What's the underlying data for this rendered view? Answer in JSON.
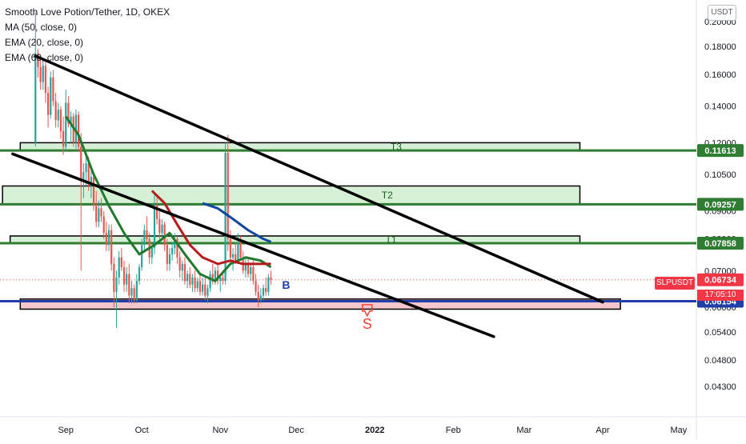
{
  "header": {
    "title": "Smooth Love Potion/Tether, 1D, OKEX",
    "indicators": [
      "MA (50, close, 0)",
      "EMA (20, close, 0)",
      "EMA (60, close, 0)"
    ]
  },
  "unit": "USDT",
  "symbol": "SLPUSDT",
  "countdown": "17:05:10",
  "colors": {
    "bull": "#26a69a",
    "bear": "#ef5350",
    "ma50": "#1f7a2e",
    "ema20": "#b71c1c",
    "ema60": "#0d47a1",
    "support": "#1f3ea8",
    "zone_fill": "#d6f0d6",
    "level_green": "#2e7d32",
    "trend": "#000000",
    "price_tag": "#f23645",
    "pink_fill": "#f5c6cb"
  },
  "chart_data": {
    "type": "candlestick",
    "title": "Smooth Love Potion/Tether, 1D, OKEX",
    "x_axis": {
      "type": "date",
      "range": [
        "2021-08-06",
        "2022-05-08"
      ],
      "ticks": [
        {
          "label": "Sep",
          "date": "2021-09-01"
        },
        {
          "label": "Oct",
          "date": "2021-10-01"
        },
        {
          "label": "Nov",
          "date": "2021-11-01"
        },
        {
          "label": "Dec",
          "date": "2021-12-01"
        },
        {
          "label": "2022",
          "date": "2022-01-01"
        },
        {
          "label": "Feb",
          "date": "2022-02-01"
        },
        {
          "label": "Mar",
          "date": "2022-03-01"
        },
        {
          "label": "Apr",
          "date": "2022-04-01"
        },
        {
          "label": "May",
          "date": "2022-05-01"
        }
      ]
    },
    "y_axis": {
      "scale": "log",
      "range": [
        0.0378,
        0.219
      ],
      "ticks": [
        "0.04300",
        "0.04800",
        "0.05400",
        "0.06000",
        "0.07000",
        "0.08000",
        "0.09000",
        "0.10500",
        "0.12000",
        "0.14000",
        "0.16000",
        "0.18000",
        "0.20000"
      ]
    },
    "candles": [
      [
        "2021-08-20",
        0.12,
        0.208,
        0.118,
        0.175
      ],
      [
        "2021-08-21",
        0.175,
        0.178,
        0.158,
        0.165
      ],
      [
        "2021-08-22",
        0.165,
        0.172,
        0.15,
        0.155
      ],
      [
        "2021-08-23",
        0.155,
        0.17,
        0.15,
        0.166
      ],
      [
        "2021-08-24",
        0.166,
        0.169,
        0.142,
        0.148
      ],
      [
        "2021-08-25",
        0.148,
        0.152,
        0.128,
        0.135
      ],
      [
        "2021-08-26",
        0.135,
        0.162,
        0.133,
        0.158
      ],
      [
        "2021-08-27",
        0.158,
        0.163,
        0.14,
        0.143
      ],
      [
        "2021-08-28",
        0.143,
        0.148,
        0.128,
        0.132
      ],
      [
        "2021-08-29",
        0.132,
        0.142,
        0.128,
        0.138
      ],
      [
        "2021-08-30",
        0.138,
        0.14,
        0.122,
        0.126
      ],
      [
        "2021-08-31",
        0.126,
        0.134,
        0.114,
        0.118
      ],
      [
        "2021-09-01",
        0.118,
        0.15,
        0.116,
        0.142
      ],
      [
        "2021-09-02",
        0.142,
        0.146,
        0.128,
        0.13
      ],
      [
        "2021-09-03",
        0.13,
        0.137,
        0.12,
        0.134
      ],
      [
        "2021-09-04",
        0.134,
        0.136,
        0.118,
        0.12
      ],
      [
        "2021-09-05",
        0.12,
        0.138,
        0.117,
        0.135
      ],
      [
        "2021-09-06",
        0.135,
        0.137,
        0.116,
        0.118
      ],
      [
        "2021-09-07",
        0.118,
        0.125,
        0.07,
        0.102
      ],
      [
        "2021-09-08",
        0.102,
        0.11,
        0.095,
        0.106
      ],
      [
        "2021-09-09",
        0.106,
        0.115,
        0.1,
        0.11
      ],
      [
        "2021-09-10",
        0.11,
        0.113,
        0.098,
        0.1
      ],
      [
        "2021-09-11",
        0.1,
        0.108,
        0.095,
        0.104
      ],
      [
        "2021-09-12",
        0.104,
        0.106,
        0.09,
        0.092
      ],
      [
        "2021-09-13",
        0.092,
        0.098,
        0.084,
        0.086
      ],
      [
        "2021-09-14",
        0.086,
        0.094,
        0.084,
        0.091
      ],
      [
        "2021-09-15",
        0.091,
        0.095,
        0.086,
        0.088
      ],
      [
        "2021-09-16",
        0.088,
        0.09,
        0.08,
        0.082
      ],
      [
        "2021-09-17",
        0.082,
        0.086,
        0.076,
        0.078
      ],
      [
        "2021-09-18",
        0.078,
        0.085,
        0.076,
        0.083
      ],
      [
        "2021-09-19",
        0.083,
        0.085,
        0.07,
        0.072
      ],
      [
        "2021-09-20",
        0.072,
        0.074,
        0.06,
        0.064
      ],
      [
        "2021-09-21",
        0.064,
        0.07,
        0.055,
        0.068
      ],
      [
        "2021-09-22",
        0.068,
        0.076,
        0.066,
        0.074
      ],
      [
        "2021-09-23",
        0.074,
        0.077,
        0.07,
        0.071
      ],
      [
        "2021-09-24",
        0.071,
        0.073,
        0.064,
        0.066
      ],
      [
        "2021-09-25",
        0.066,
        0.071,
        0.064,
        0.069
      ],
      [
        "2021-09-26",
        0.069,
        0.072,
        0.061,
        0.063
      ],
      [
        "2021-09-27",
        0.063,
        0.067,
        0.061,
        0.065
      ],
      [
        "2021-09-28",
        0.065,
        0.066,
        0.061,
        0.062
      ],
      [
        "2021-09-29",
        0.062,
        0.069,
        0.061,
        0.067
      ],
      [
        "2021-09-30",
        0.067,
        0.072,
        0.066,
        0.071
      ],
      [
        "2021-10-01",
        0.071,
        0.08,
        0.07,
        0.078
      ],
      [
        "2021-10-02",
        0.078,
        0.085,
        0.076,
        0.083
      ],
      [
        "2021-10-03",
        0.083,
        0.088,
        0.079,
        0.08
      ],
      [
        "2021-10-04",
        0.08,
        0.082,
        0.072,
        0.074
      ],
      [
        "2021-10-05",
        0.074,
        0.078,
        0.072,
        0.077
      ],
      [
        "2021-10-06",
        0.077,
        0.097,
        0.075,
        0.092
      ],
      [
        "2021-10-07",
        0.092,
        0.096,
        0.085,
        0.087
      ],
      [
        "2021-10-08",
        0.087,
        0.09,
        0.08,
        0.082
      ],
      [
        "2021-10-09",
        0.082,
        0.087,
        0.08,
        0.085
      ],
      [
        "2021-10-10",
        0.085,
        0.086,
        0.076,
        0.078
      ],
      [
        "2021-10-11",
        0.078,
        0.08,
        0.07,
        0.072
      ],
      [
        "2021-10-12",
        0.072,
        0.077,
        0.07,
        0.075
      ],
      [
        "2021-10-13",
        0.075,
        0.079,
        0.073,
        0.077
      ],
      [
        "2021-10-14",
        0.077,
        0.082,
        0.075,
        0.08
      ],
      [
        "2021-10-15",
        0.08,
        0.081,
        0.072,
        0.074
      ],
      [
        "2021-10-16",
        0.074,
        0.076,
        0.068,
        0.07
      ],
      [
        "2021-10-17",
        0.07,
        0.073,
        0.067,
        0.072
      ],
      [
        "2021-10-18",
        0.072,
        0.074,
        0.066,
        0.067
      ],
      [
        "2021-10-19",
        0.067,
        0.07,
        0.065,
        0.069
      ],
      [
        "2021-10-20",
        0.069,
        0.071,
        0.065,
        0.066
      ],
      [
        "2021-10-21",
        0.066,
        0.069,
        0.064,
        0.068
      ],
      [
        "2021-10-22",
        0.068,
        0.07,
        0.064,
        0.065
      ],
      [
        "2021-10-23",
        0.065,
        0.068,
        0.064,
        0.067
      ],
      [
        "2021-10-24",
        0.067,
        0.069,
        0.063,
        0.064
      ],
      [
        "2021-10-25",
        0.064,
        0.068,
        0.063,
        0.066
      ],
      [
        "2021-10-26",
        0.066,
        0.068,
        0.062,
        0.063
      ],
      [
        "2021-10-27",
        0.063,
        0.066,
        0.061,
        0.065
      ],
      [
        "2021-10-28",
        0.065,
        0.07,
        0.064,
        0.069
      ],
      [
        "2021-10-29",
        0.069,
        0.072,
        0.066,
        0.067
      ],
      [
        "2021-10-30",
        0.067,
        0.071,
        0.066,
        0.07
      ],
      [
        "2021-10-31",
        0.07,
        0.072,
        0.066,
        0.067
      ],
      [
        "2021-11-01",
        0.067,
        0.069,
        0.064,
        0.068
      ],
      [
        "2021-11-02",
        0.068,
        0.07,
        0.066,
        0.067
      ],
      [
        "2021-11-03",
        0.067,
        0.12,
        0.066,
        0.115
      ],
      [
        "2021-11-04",
        0.115,
        0.124,
        0.076,
        0.08
      ],
      [
        "2021-11-05",
        0.08,
        0.083,
        0.072,
        0.074
      ],
      [
        "2021-11-06",
        0.074,
        0.077,
        0.07,
        0.075
      ],
      [
        "2021-11-07",
        0.075,
        0.079,
        0.072,
        0.073
      ],
      [
        "2021-11-08",
        0.073,
        0.082,
        0.072,
        0.079
      ],
      [
        "2021-11-09",
        0.079,
        0.081,
        0.073,
        0.074
      ],
      [
        "2021-11-10",
        0.074,
        0.076,
        0.069,
        0.07
      ],
      [
        "2021-11-11",
        0.07,
        0.074,
        0.068,
        0.072
      ],
      [
        "2021-11-12",
        0.072,
        0.074,
        0.068,
        0.069
      ],
      [
        "2021-11-13",
        0.069,
        0.072,
        0.067,
        0.071
      ],
      [
        "2021-11-14",
        0.071,
        0.073,
        0.066,
        0.067
      ],
      [
        "2021-11-15",
        0.067,
        0.069,
        0.063,
        0.064
      ],
      [
        "2021-11-16",
        0.064,
        0.066,
        0.06,
        0.062
      ],
      [
        "2021-11-17",
        0.062,
        0.065,
        0.061,
        0.063
      ],
      [
        "2021-11-18",
        0.063,
        0.066,
        0.062,
        0.065
      ],
      [
        "2021-11-19",
        0.065,
        0.068,
        0.063,
        0.064
      ],
      [
        "2021-11-20",
        0.064,
        0.069,
        0.063,
        0.068
      ],
      [
        "2021-11-21",
        0.068,
        0.07,
        0.066,
        0.06734
      ]
    ],
    "indicators": [
      {
        "name": "MA (50, close, 0)",
        "color": "#1f7a2e",
        "points": [
          [
            "2021-09-01",
            0.134
          ],
          [
            "2021-09-06",
            0.124
          ],
          [
            "2021-09-12",
            0.105
          ],
          [
            "2021-09-18",
            0.092
          ],
          [
            "2021-09-24",
            0.082
          ],
          [
            "2021-09-30",
            0.075
          ],
          [
            "2021-10-06",
            0.078
          ],
          [
            "2021-10-12",
            0.082
          ],
          [
            "2021-10-18",
            0.075
          ],
          [
            "2021-10-24",
            0.069
          ],
          [
            "2021-10-30",
            0.067
          ],
          [
            "2021-11-05",
            0.072
          ],
          [
            "2021-11-11",
            0.074
          ],
          [
            "2021-11-17",
            0.073
          ],
          [
            "2021-11-21",
            0.071
          ]
        ]
      },
      {
        "name": "EMA (20, close, 0)",
        "color": "#b71c1c",
        "points": [
          [
            "2021-10-05",
            0.098
          ],
          [
            "2021-10-10",
            0.093
          ],
          [
            "2021-10-15",
            0.085
          ],
          [
            "2021-10-20",
            0.078
          ],
          [
            "2021-10-25",
            0.074
          ],
          [
            "2021-10-31",
            0.072
          ],
          [
            "2021-11-05",
            0.073
          ],
          [
            "2021-11-10",
            0.072
          ],
          [
            "2021-11-15",
            0.072
          ],
          [
            "2021-11-21",
            0.072
          ]
        ]
      },
      {
        "name": "EMA (60, close, 0)",
        "color": "#0d47a1",
        "points": [
          [
            "2021-10-25",
            0.093
          ],
          [
            "2021-10-31",
            0.091
          ],
          [
            "2021-11-06",
            0.087
          ],
          [
            "2021-11-12",
            0.083
          ],
          [
            "2021-11-18",
            0.08
          ],
          [
            "2021-11-21",
            0.079
          ]
        ]
      }
    ],
    "zones": [
      {
        "label": "T3",
        "date_range": [
          "2021-08-14",
          "2022-03-23"
        ],
        "price_range": [
          0.1161,
          0.12
        ]
      },
      {
        "label": "T2",
        "date_range": [
          "2021-08-07",
          "2022-03-23"
        ],
        "price_range": [
          0.0925,
          0.1
        ]
      },
      {
        "label": "T1",
        "date_range": [
          "2021-08-10",
          "2022-03-23"
        ],
        "price_range": [
          0.0785,
          0.081
        ]
      }
    ],
    "levels": [
      {
        "price": 0.11613,
        "label": "0.11613"
      },
      {
        "price": 0.09257,
        "label": "0.09257"
      },
      {
        "price": 0.07858,
        "label": "0.07858"
      },
      {
        "price": 0.06154,
        "label": "0.06154"
      }
    ],
    "support_box": {
      "date_range": [
        "2021-08-14",
        "2022-04-08"
      ],
      "price_range": [
        0.0595,
        0.0621
      ]
    },
    "trendlines": [
      {
        "from": [
          "2021-08-20",
          0.173
        ],
        "to": [
          "2022-04-01",
          0.0613
        ]
      },
      {
        "from": [
          "2021-08-11",
          0.1145
        ],
        "to": [
          "2022-02-17",
          0.053
        ]
      }
    ],
    "annotations": [
      {
        "text": "B",
        "date": "2021-11-27",
        "price": 0.0648
      },
      {
        "text": "S",
        "date": "2021-12-29",
        "price": 0.0548
      }
    ],
    "last_price": 0.06734
  }
}
